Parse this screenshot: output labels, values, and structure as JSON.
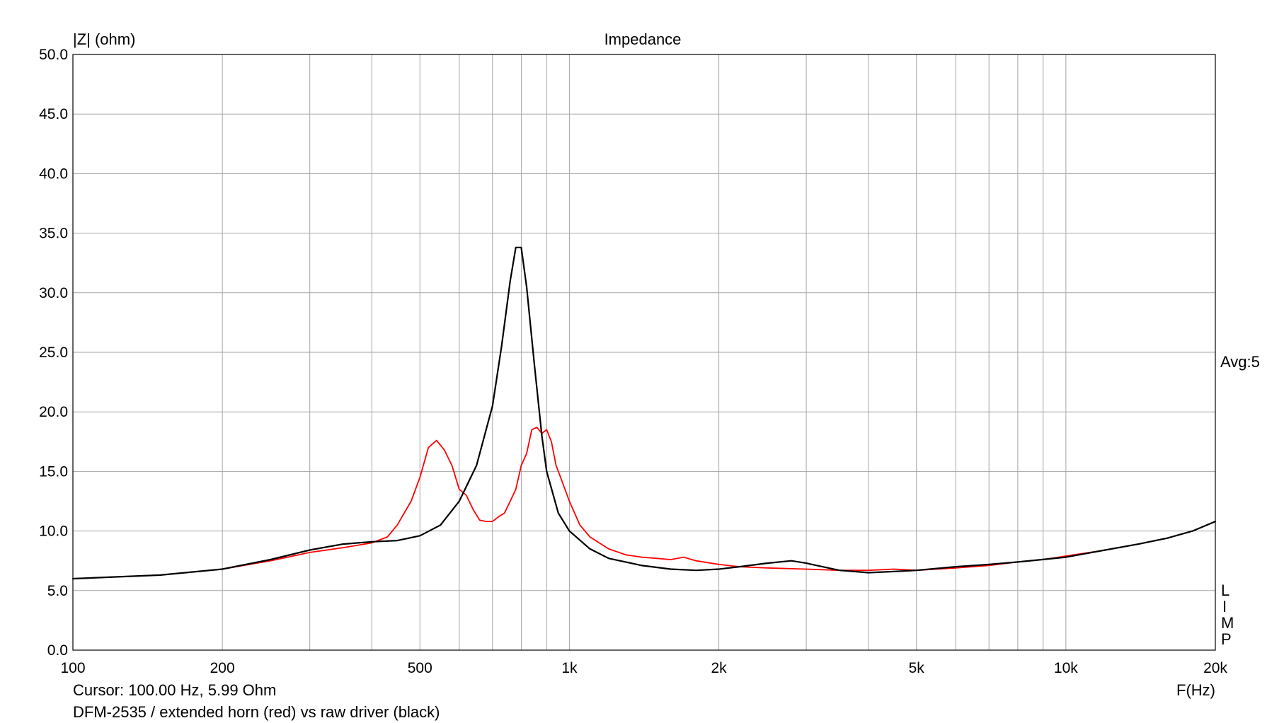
{
  "chart_data": {
    "type": "line",
    "title": "Impedance",
    "ylabel": "|Z| (ohm)",
    "xlabel": "F(Hz)",
    "x_scale": "log",
    "xlim": [
      100,
      20000
    ],
    "ylim": [
      0,
      50
    ],
    "grid": true,
    "y_ticks": [
      "0.0",
      "5.0",
      "10.0",
      "15.0",
      "20.0",
      "25.0",
      "30.0",
      "35.0",
      "40.0",
      "45.0",
      "50.0"
    ],
    "x_tick_labels": [
      {
        "value": 100,
        "label": "100"
      },
      {
        "value": 200,
        "label": "200"
      },
      {
        "value": 500,
        "label": "500"
      },
      {
        "value": 1000,
        "label": "1k"
      },
      {
        "value": 2000,
        "label": "2k"
      },
      {
        "value": 5000,
        "label": "5k"
      },
      {
        "value": 10000,
        "label": "10k"
      },
      {
        "value": 20000,
        "label": "20k"
      }
    ],
    "averaging_label": "Avg:5",
    "side_letters": [
      "L",
      "I",
      "M",
      "P"
    ],
    "cursor_text": "Cursor: 100.00 Hz, 5.99 Ohm",
    "caption": "DFM-2535 / extended horn (red) vs raw driver (black)",
    "series": [
      {
        "color": "#ff0000",
        "x": [
          100,
          150,
          200,
          250,
          300,
          350,
          400,
          430,
          450,
          480,
          500,
          520,
          540,
          560,
          580,
          600,
          620,
          640,
          660,
          680,
          700,
          720,
          740,
          760,
          780,
          800,
          820,
          840,
          860,
          880,
          900,
          920,
          940,
          960,
          1000,
          1050,
          1100,
          1200,
          1300,
          1400,
          1500,
          1600,
          1700,
          1800,
          2000,
          2200,
          2500,
          3000,
          3500,
          4000,
          4500,
          5000,
          5500,
          6000,
          7000,
          8000,
          9000,
          10000,
          12000,
          14000,
          16000,
          18000,
          20000
        ],
        "y": [
          6.0,
          6.3,
          6.8,
          7.5,
          8.2,
          8.6,
          9.0,
          9.5,
          10.5,
          12.5,
          14.5,
          17.0,
          17.6,
          16.8,
          15.5,
          13.5,
          13.0,
          11.8,
          10.9,
          10.8,
          10.8,
          11.2,
          11.5,
          12.5,
          13.5,
          15.5,
          16.5,
          18.5,
          18.7,
          18.2,
          18.5,
          17.5,
          15.5,
          14.5,
          12.5,
          10.5,
          9.5,
          8.5,
          8.0,
          7.8,
          7.7,
          7.6,
          7.8,
          7.5,
          7.2,
          7.0,
          6.9,
          6.8,
          6.7,
          6.7,
          6.8,
          6.7,
          6.8,
          6.9,
          7.1,
          7.4,
          7.6,
          7.9,
          8.4,
          8.9,
          9.4,
          10.0,
          10.8
        ]
      },
      {
        "color": "#000000",
        "x": [
          100,
          150,
          200,
          250,
          300,
          350,
          400,
          450,
          500,
          550,
          600,
          650,
          700,
          730,
          760,
          780,
          800,
          820,
          850,
          880,
          900,
          950,
          1000,
          1100,
          1200,
          1400,
          1600,
          1800,
          2000,
          2200,
          2500,
          2800,
          3000,
          3500,
          4000,
          4500,
          5000,
          6000,
          7000,
          8000,
          10000,
          12000,
          14000,
          16000,
          18000,
          20000
        ],
        "y": [
          6.0,
          6.3,
          6.8,
          7.6,
          8.4,
          8.9,
          9.1,
          9.2,
          9.6,
          10.5,
          12.5,
          15.5,
          20.5,
          25.5,
          31.0,
          33.8,
          33.8,
          30.5,
          24.0,
          18.0,
          15.0,
          11.5,
          10.0,
          8.5,
          7.7,
          7.1,
          6.8,
          6.7,
          6.8,
          7.0,
          7.3,
          7.5,
          7.3,
          6.7,
          6.5,
          6.6,
          6.7,
          7.0,
          7.2,
          7.4,
          7.8,
          8.4,
          8.9,
          9.4,
          10.0,
          10.8
        ]
      }
    ]
  }
}
